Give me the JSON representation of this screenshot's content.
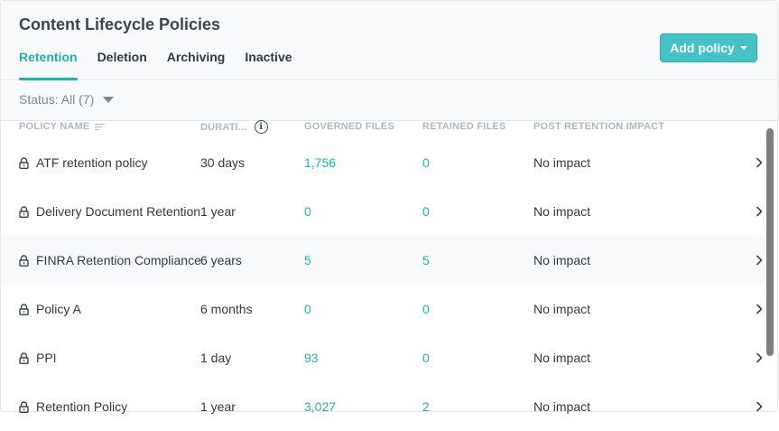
{
  "header": {
    "title": "Content Lifecycle Policies",
    "tabs": [
      {
        "label": "Retention",
        "active": true
      },
      {
        "label": "Deletion",
        "active": false
      },
      {
        "label": "Archiving",
        "active": false
      },
      {
        "label": "Inactive",
        "active": false
      }
    ],
    "add_button_label": "Add policy"
  },
  "filter": {
    "status_label": "Status: All (7)"
  },
  "table": {
    "columns": {
      "name": "POLICY NAME",
      "duration": "DURATI...",
      "governed": "GOVERNED FILES",
      "retained": "RETAINED FILES",
      "impact": "POST RETENTION IMPACT"
    },
    "rows": [
      {
        "name": "ATF retention policy",
        "duration": "30 days",
        "governed": "1,756",
        "retained": "0",
        "impact": "No impact"
      },
      {
        "name": "Delivery Document Retention",
        "duration": "1 year",
        "governed": "0",
        "retained": "0",
        "impact": "No impact"
      },
      {
        "name": "FINRA Retention Compliance",
        "duration": "6 years",
        "governed": "5",
        "retained": "5",
        "impact": "No impact"
      },
      {
        "name": "Policy A",
        "duration": "6 months",
        "governed": "0",
        "retained": "0",
        "impact": "No impact"
      },
      {
        "name": "PPI",
        "duration": "1 day",
        "governed": "93",
        "retained": "0",
        "impact": "No impact"
      },
      {
        "name": "Retention Policy",
        "duration": "1 year",
        "governed": "3,027",
        "retained": "2",
        "impact": "No impact"
      }
    ]
  },
  "colors": {
    "accent": "#1fb2ad",
    "button": "#45c2c6",
    "text": "#2f3941",
    "muted": "#7c8891"
  },
  "icons": {
    "row_icon": "lock-icon",
    "row_action": "chevron-right-icon",
    "sort": "sort-icon",
    "info": "info-icon"
  }
}
